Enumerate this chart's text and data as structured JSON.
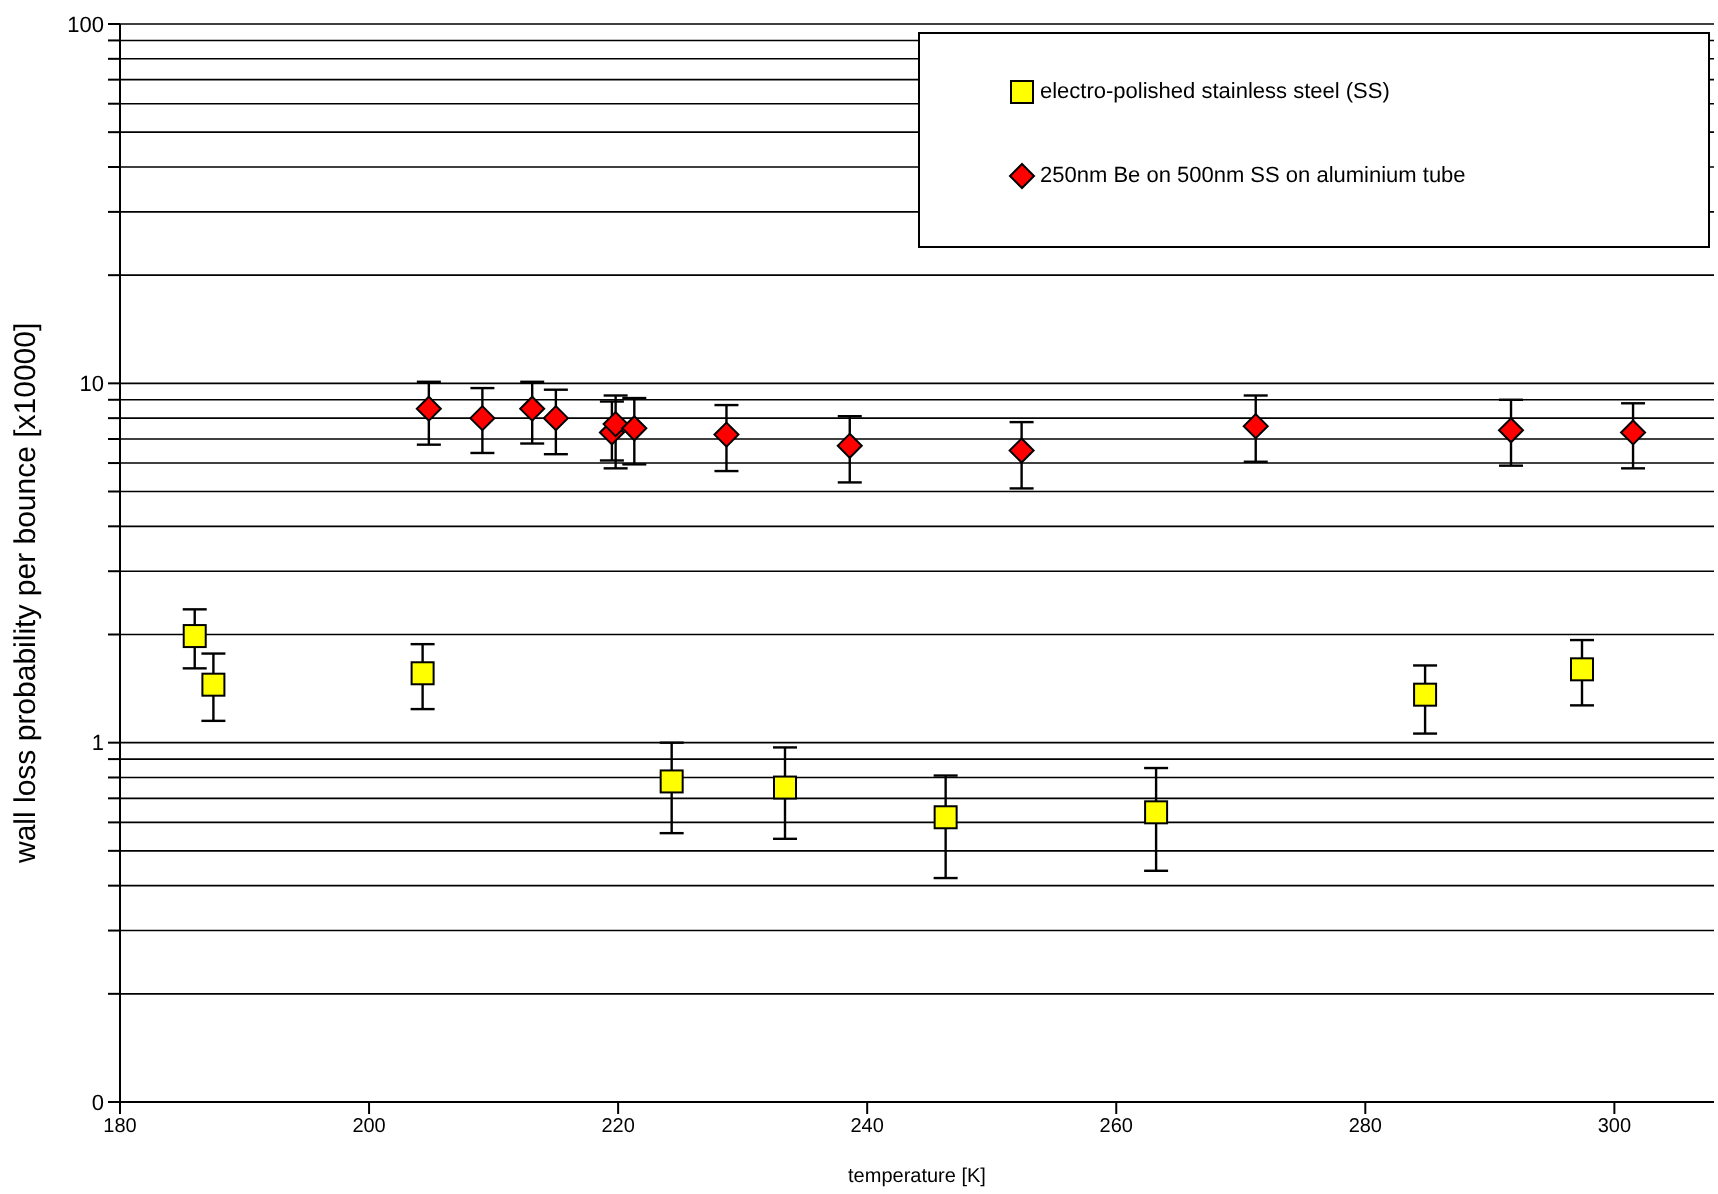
{
  "chart_data": {
    "type": "scatter",
    "xlabel": "temperature [K]",
    "ylabel": "wall loss probability per bounce [x10000]",
    "log": "y",
    "grid": "y",
    "legend": "top right",
    "xlim": [
      180,
      308
    ],
    "xticks": [
      180,
      200,
      220,
      240,
      260,
      280,
      300
    ],
    "ylim": [
      0.1,
      100
    ],
    "yticks": [
      {
        "value": 0.1,
        "label": "0"
      },
      {
        "value": 0.2,
        "label": null
      },
      {
        "value": 0.3,
        "label": null
      },
      {
        "value": 0.4,
        "label": null
      },
      {
        "value": 0.5,
        "label": null
      },
      {
        "value": 0.6,
        "label": null
      },
      {
        "value": 0.7,
        "label": null
      },
      {
        "value": 0.8,
        "label": null
      },
      {
        "value": 0.9,
        "label": null
      },
      1,
      {
        "value": 2,
        "label": null
      },
      {
        "value": 3,
        "label": null
      },
      {
        "value": 4,
        "label": null
      },
      {
        "value": 5,
        "label": null
      },
      {
        "value": 6,
        "label": null
      },
      {
        "value": 7,
        "label": null
      },
      {
        "value": 8,
        "label": null
      },
      {
        "value": 9,
        "label": null
      },
      10,
      {
        "value": 20,
        "label": null
      },
      {
        "value": 30,
        "label": null
      },
      {
        "value": 40,
        "label": null
      },
      {
        "value": 50,
        "label": null
      },
      {
        "value": 60,
        "label": null
      },
      {
        "value": 70,
        "label": null
      },
      {
        "value": 80,
        "label": null
      },
      {
        "value": 90,
        "label": null
      },
      100
    ],
    "series": [
      {
        "name": "electro-polished stainless steel (SS)",
        "color": "#ffff00",
        "marker": "square",
        "x": [
          186.0,
          187.5,
          204.3,
          224.3,
          233.4,
          246.3,
          263.2,
          284.8,
          297.4
        ],
        "values": [
          1.98,
          1.45,
          1.56,
          0.78,
          0.75,
          0.62,
          0.64,
          1.36,
          1.6
        ],
        "errors": [
          [
            1.61,
            2.35
          ],
          [
            1.15,
            1.77
          ],
          [
            1.24,
            1.88
          ],
          [
            0.56,
            1.0
          ],
          [
            0.54,
            0.97
          ],
          [
            0.42,
            0.81
          ],
          [
            0.44,
            0.85
          ],
          [
            1.06,
            1.64
          ],
          [
            1.27,
            1.93
          ]
        ]
      },
      {
        "name": "250nm Be on 500nm SS on aluminium tube",
        "color": "#ff0000",
        "marker": "diamond",
        "x": [
          204.8,
          209.1,
          213.1,
          215.0,
          219.5,
          219.8,
          221.3,
          228.7,
          238.6,
          252.4,
          271.2,
          291.7,
          301.5
        ],
        "values": [
          8.5,
          8.0,
          8.5,
          8.0,
          7.3,
          7.7,
          7.5,
          7.2,
          6.7,
          6.5,
          7.6,
          7.4,
          7.3
        ],
        "errors": [
          [
            6.75,
            10.1
          ],
          [
            6.4,
            9.7
          ],
          [
            6.8,
            10.1
          ],
          [
            6.35,
            9.6
          ],
          [
            6.1,
            8.9
          ],
          [
            5.8,
            9.25
          ],
          [
            5.95,
            9.1
          ],
          [
            5.7,
            8.7
          ],
          [
            5.3,
            8.1
          ],
          [
            5.1,
            7.8
          ],
          [
            6.05,
            9.25
          ],
          [
            5.9,
            9.0
          ],
          [
            5.8,
            8.8
          ]
        ]
      }
    ]
  }
}
